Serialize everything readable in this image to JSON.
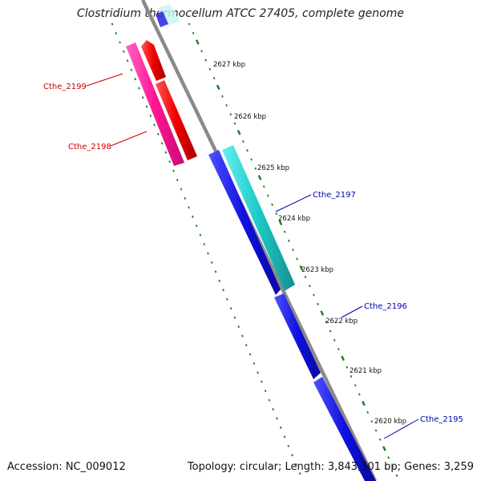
{
  "title": "Clostridium thermocellum ATCC 27405, complete genome",
  "footer": {
    "accession": "Accession: NC_009012",
    "summary": "Topology: circular; Length: 3,843,301 bp; Genes: 3,259"
  },
  "ticks": [
    "2627 kbp",
    "2626 kbp",
    "2625 kbp",
    "2624 kbp",
    "2623 kbp",
    "2622 kbp",
    "2621 kbp",
    "2620 kbp"
  ],
  "genes": {
    "reverse": [
      {
        "label": "Cthe_2199",
        "color": "#ff1493"
      },
      {
        "label": "Cthe_2198",
        "color": "#dd0000"
      }
    ],
    "forward": [
      {
        "label": "Cthe_2197",
        "color": "#1a3cc8"
      },
      {
        "label": "Cthe_2196",
        "color": "#0a2ab0"
      },
      {
        "label": "Cthe_2195",
        "color": "#0a2ab0"
      }
    ]
  },
  "colors": {
    "backbone": "#8a8a8a",
    "ticks": "#1f7a1f",
    "reverse_label": "#cc0000",
    "forward_label": "#0000aa",
    "cds_red": "#ee1111",
    "cds_pink": "#ff2aa0",
    "cds_blue": "#1010e0",
    "cds_cyan": "#1fc8c8"
  }
}
